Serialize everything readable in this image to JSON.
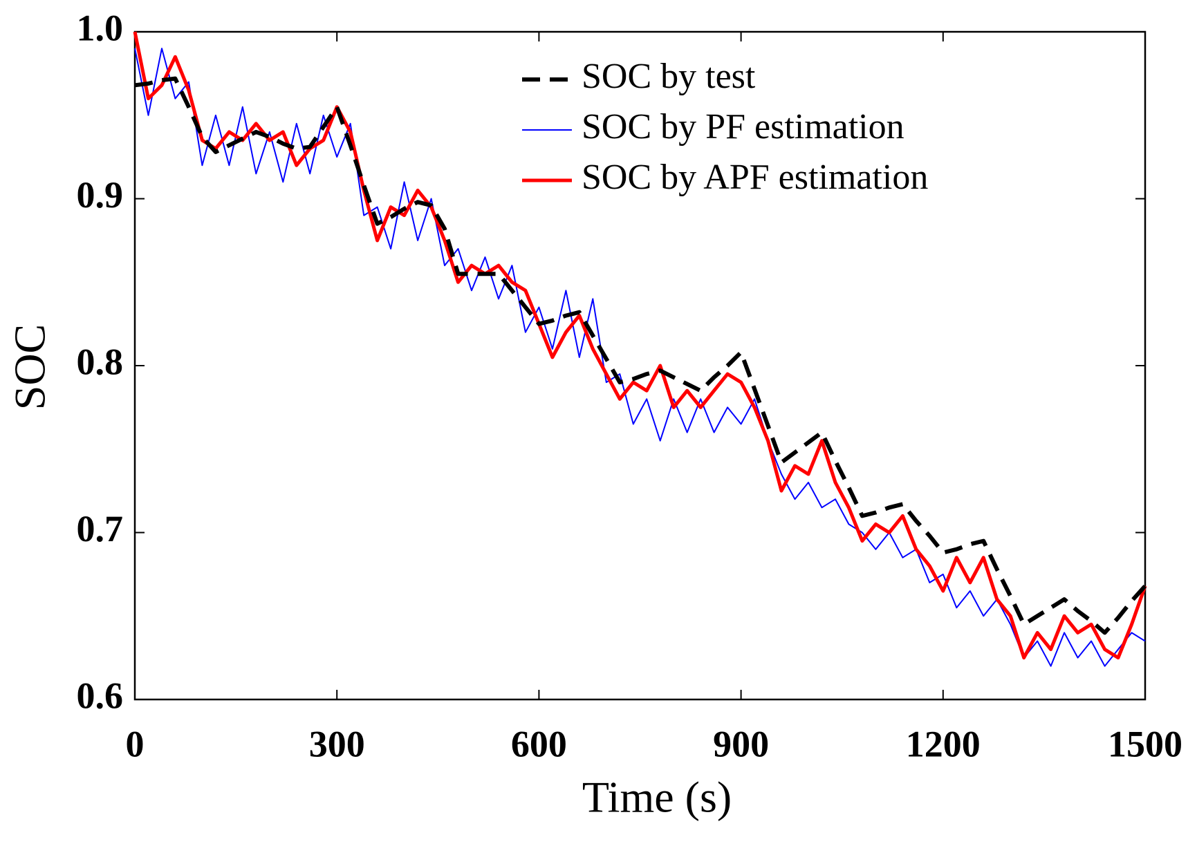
{
  "chart_data": {
    "type": "line",
    "xlabel": "Time (s)",
    "ylabel": "SOC",
    "x": [
      0,
      20,
      40,
      60,
      80,
      100,
      120,
      140,
      160,
      180,
      200,
      220,
      240,
      260,
      280,
      300,
      320,
      340,
      360,
      380,
      400,
      420,
      440,
      460,
      480,
      500,
      520,
      540,
      560,
      580,
      600,
      620,
      640,
      660,
      680,
      700,
      720,
      740,
      760,
      780,
      800,
      820,
      840,
      860,
      880,
      900,
      920,
      940,
      960,
      980,
      1000,
      1020,
      1040,
      1060,
      1080,
      1100,
      1120,
      1140,
      1160,
      1180,
      1200,
      1220,
      1240,
      1260,
      1280,
      1300,
      1320,
      1340,
      1360,
      1380,
      1400,
      1420,
      1440,
      1460,
      1480,
      1500
    ],
    "series": [
      {
        "name": "SOC by test",
        "color": "#000000",
        "dash": true,
        "values": [
          0.968,
          0.969,
          0.971,
          0.972,
          0.955,
          0.937,
          0.928,
          0.932,
          0.936,
          0.94,
          0.937,
          0.933,
          0.93,
          0.931,
          0.943,
          0.955,
          0.932,
          0.908,
          0.885,
          0.889,
          0.894,
          0.898,
          0.896,
          0.882,
          0.855,
          0.855,
          0.855,
          0.855,
          0.845,
          0.835,
          0.825,
          0.827,
          0.83,
          0.832,
          0.818,
          0.804,
          0.79,
          0.792,
          0.795,
          0.797,
          0.793,
          0.789,
          0.785,
          0.793,
          0.8,
          0.808,
          0.786,
          0.764,
          0.742,
          0.748,
          0.754,
          0.76,
          0.743,
          0.727,
          0.71,
          0.712,
          0.715,
          0.717,
          0.707,
          0.698,
          0.688,
          0.69,
          0.693,
          0.695,
          0.678,
          0.662,
          0.645,
          0.65,
          0.655,
          0.66,
          0.653,
          0.647,
          0.64,
          0.649,
          0.659,
          0.668
        ]
      },
      {
        "name": "SOC by PF estimation",
        "color": "#0000ff",
        "dash": false,
        "values": [
          0.99,
          0.95,
          0.99,
          0.96,
          0.97,
          0.92,
          0.95,
          0.92,
          0.955,
          0.915,
          0.94,
          0.91,
          0.945,
          0.915,
          0.95,
          0.925,
          0.945,
          0.89,
          0.895,
          0.87,
          0.91,
          0.875,
          0.9,
          0.86,
          0.87,
          0.845,
          0.865,
          0.84,
          0.86,
          0.82,
          0.835,
          0.81,
          0.845,
          0.805,
          0.84,
          0.79,
          0.795,
          0.765,
          0.78,
          0.755,
          0.78,
          0.76,
          0.78,
          0.76,
          0.775,
          0.765,
          0.78,
          0.755,
          0.735,
          0.72,
          0.73,
          0.715,
          0.72,
          0.705,
          0.7,
          0.69,
          0.7,
          0.685,
          0.69,
          0.67,
          0.675,
          0.655,
          0.665,
          0.65,
          0.66,
          0.645,
          0.625,
          0.635,
          0.62,
          0.64,
          0.625,
          0.635,
          0.62,
          0.63,
          0.64,
          0.635
        ]
      },
      {
        "name": "SOC by APF estimation",
        "color": "#ff0000",
        "dash": false,
        "values": [
          1.0,
          0.96,
          0.968,
          0.985,
          0.965,
          0.935,
          0.93,
          0.94,
          0.935,
          0.945,
          0.935,
          0.94,
          0.92,
          0.93,
          0.935,
          0.955,
          0.94,
          0.905,
          0.875,
          0.895,
          0.89,
          0.905,
          0.895,
          0.875,
          0.85,
          0.86,
          0.855,
          0.86,
          0.85,
          0.845,
          0.825,
          0.805,
          0.82,
          0.83,
          0.81,
          0.795,
          0.78,
          0.79,
          0.785,
          0.8,
          0.775,
          0.785,
          0.775,
          0.785,
          0.795,
          0.79,
          0.775,
          0.755,
          0.725,
          0.74,
          0.735,
          0.755,
          0.73,
          0.715,
          0.695,
          0.705,
          0.7,
          0.71,
          0.69,
          0.68,
          0.665,
          0.685,
          0.67,
          0.685,
          0.66,
          0.65,
          0.625,
          0.64,
          0.63,
          0.65,
          0.64,
          0.645,
          0.63,
          0.625,
          0.645,
          0.668
        ]
      }
    ],
    "xlim": [
      0,
      1500
    ],
    "xticks": [
      0,
      300,
      600,
      900,
      1200,
      1500
    ],
    "ylim": [
      0.6,
      1
    ],
    "yticks": [
      0.6,
      0.7,
      0.8,
      0.9,
      {
        "value": 1,
        "label": "1.0"
      }
    ],
    "grid": false,
    "legend": "top"
  }
}
